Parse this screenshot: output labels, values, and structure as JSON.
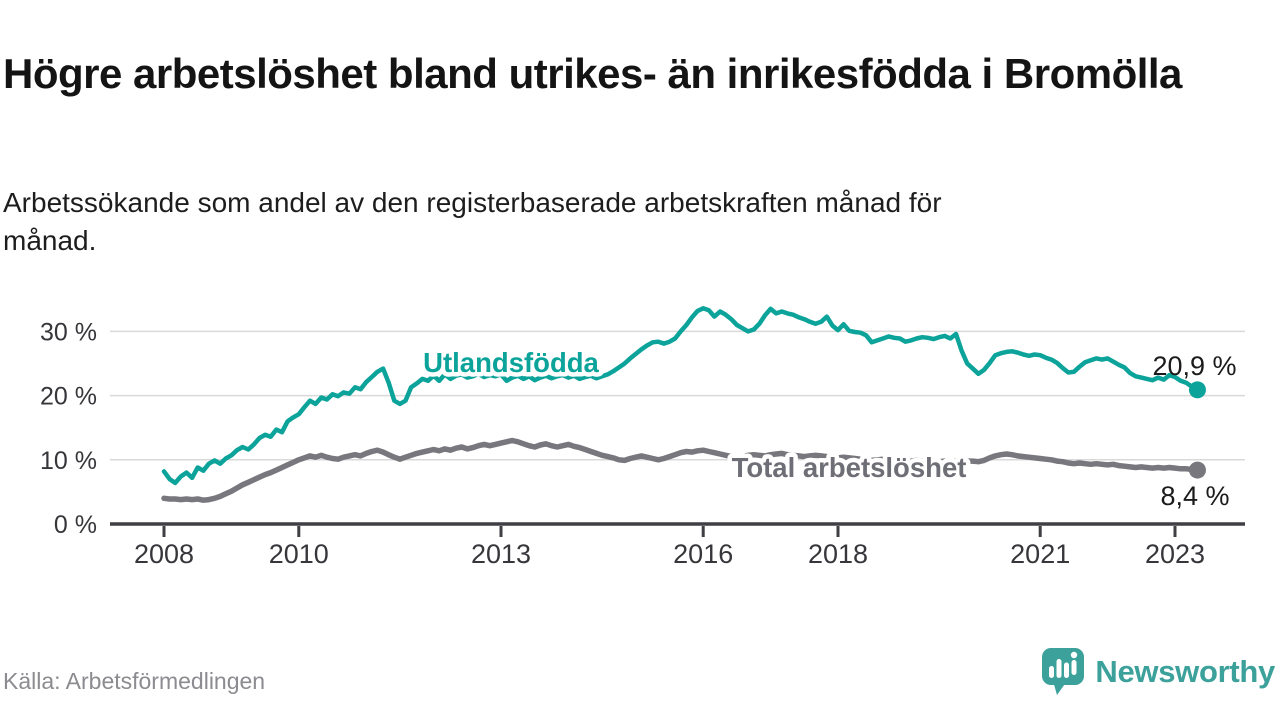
{
  "header": {
    "title": "Högre arbetslöshet bland utrikes- än inrikesfödda i Bromölla",
    "subtitle": "Arbetssökande som andel av den registerbaserade arbetskraften månad för månad."
  },
  "footer": {
    "source": "Källa: Arbetsförmedlingen",
    "brand": "Newsworthy"
  },
  "colors": {
    "teal_series": "#0ca39a",
    "gray_series": "#77777d",
    "gray_label": "#6e6e76",
    "annotation_text": "#1b1b1b",
    "axis_text": "#36363b",
    "axis_line": "#3f3f44",
    "gridline": "#d9d9d9",
    "logo_teal": "#3ba19a",
    "source_text": "#8b8b90"
  },
  "chart_data": {
    "type": "line",
    "title": "",
    "xlabel": "",
    "ylabel": "",
    "x_unit": "month",
    "x_start": "2008-01",
    "x_end": "2023-05",
    "n_points": 185,
    "grid": "horizontal",
    "legend_position": "inline-labels",
    "ylim": [
      0,
      36
    ],
    "y_tick_values": [
      0,
      10,
      20,
      30
    ],
    "y_tick_labels": [
      "0 %",
      "10 %",
      "20 %",
      "30 %"
    ],
    "x_tick_years": [
      2008,
      2010,
      2013,
      2016,
      2018,
      2021,
      2023
    ],
    "x_tick_labels": [
      "2008",
      "2010",
      "2013",
      "2016",
      "2018",
      "2021",
      "2023"
    ],
    "series": [
      {
        "name": "Total arbetslöshet",
        "color": "#77777d",
        "end_label": "8,4 %",
        "end_value": 8.4,
        "values": [
          4.0,
          3.9,
          3.9,
          3.8,
          3.9,
          3.8,
          3.9,
          3.7,
          3.8,
          4.0,
          4.3,
          4.7,
          5.1,
          5.6,
          6.1,
          6.5,
          6.9,
          7.3,
          7.7,
          8.0,
          8.4,
          8.8,
          9.2,
          9.6,
          10.0,
          10.3,
          10.6,
          10.4,
          10.7,
          10.4,
          10.2,
          10.1,
          10.4,
          10.6,
          10.8,
          10.6,
          11.0,
          11.3,
          11.5,
          11.2,
          10.8,
          10.4,
          10.1,
          10.4,
          10.7,
          11.0,
          11.2,
          11.4,
          11.6,
          11.4,
          11.7,
          11.5,
          11.8,
          12.0,
          11.7,
          11.9,
          12.2,
          12.4,
          12.2,
          12.4,
          12.6,
          12.8,
          13.0,
          12.8,
          12.5,
          12.2,
          12.0,
          12.3,
          12.5,
          12.2,
          12.0,
          12.2,
          12.4,
          12.1,
          11.9,
          11.6,
          11.3,
          11.0,
          10.7,
          10.5,
          10.3,
          10.0,
          9.9,
          10.2,
          10.4,
          10.6,
          10.4,
          10.2,
          10.0,
          10.2,
          10.5,
          10.8,
          11.1,
          11.3,
          11.2,
          11.4,
          11.5,
          11.3,
          11.1,
          10.9,
          10.7,
          10.5,
          10.4,
          10.5,
          10.7,
          10.8,
          10.7,
          10.6,
          10.8,
          10.9,
          11.0,
          10.8,
          10.7,
          10.6,
          10.5,
          10.6,
          10.7,
          10.6,
          10.5,
          10.4,
          10.3,
          10.4,
          10.3,
          10.2,
          10.1,
          10.0,
          9.9,
          10.0,
          10.1,
          10.0,
          9.9,
          9.8,
          9.7,
          9.8,
          9.9,
          9.8,
          9.7,
          9.6,
          9.7,
          9.8,
          9.7,
          9.8,
          9.9,
          9.8,
          9.8,
          9.7,
          9.9,
          10.3,
          10.6,
          10.8,
          10.9,
          10.8,
          10.6,
          10.5,
          10.4,
          10.3,
          10.2,
          10.1,
          10.0,
          9.8,
          9.7,
          9.5,
          9.4,
          9.5,
          9.4,
          9.3,
          9.4,
          9.3,
          9.2,
          9.3,
          9.1,
          9.0,
          8.9,
          8.8,
          8.9,
          8.8,
          8.7,
          8.8,
          8.7,
          8.8,
          8.7,
          8.6,
          8.6,
          8.5,
          8.4
        ]
      },
      {
        "name": "Utlandsfödda",
        "color": "#0ca39a",
        "end_label": "20,9 %",
        "end_value": 20.9,
        "values": [
          8.2,
          7.0,
          6.4,
          7.4,
          8.0,
          7.2,
          8.8,
          8.3,
          9.4,
          9.9,
          9.4,
          10.2,
          10.7,
          11.5,
          12.0,
          11.6,
          12.4,
          13.4,
          13.9,
          13.6,
          14.7,
          14.3,
          16.0,
          16.6,
          17.1,
          18.2,
          19.2,
          18.7,
          19.7,
          19.4,
          20.2,
          19.9,
          20.5,
          20.3,
          21.3,
          21.0,
          22.1,
          22.9,
          23.7,
          24.2,
          22.0,
          19.2,
          18.7,
          19.2,
          21.3,
          21.9,
          22.6,
          22.3,
          23.1,
          22.3,
          23.3,
          22.6,
          23.1,
          23.3,
          22.8,
          23.0,
          23.4,
          22.9,
          23.2,
          23.0,
          23.3,
          22.3,
          22.8,
          23.1,
          22.6,
          23.0,
          22.4,
          22.8,
          23.1,
          22.7,
          23.0,
          23.2,
          22.8,
          23.1,
          22.6,
          22.9,
          23.1,
          22.7,
          23.0,
          23.3,
          23.8,
          24.4,
          25.0,
          25.8,
          26.5,
          27.2,
          27.8,
          28.3,
          28.4,
          28.1,
          28.4,
          28.9,
          30.0,
          31.0,
          32.2,
          33.2,
          33.6,
          33.3,
          32.3,
          33.1,
          32.6,
          31.9,
          31.0,
          30.5,
          30.0,
          30.3,
          31.2,
          32.5,
          33.5,
          32.8,
          33.1,
          32.8,
          32.6,
          32.2,
          31.9,
          31.5,
          31.2,
          31.5,
          32.3,
          30.9,
          30.2,
          31.1,
          30.1,
          29.9,
          29.8,
          29.4,
          28.3,
          28.6,
          28.9,
          29.2,
          29.0,
          28.9,
          28.4,
          28.6,
          28.9,
          29.1,
          29.0,
          28.8,
          29.1,
          29.3,
          28.9,
          29.6,
          27.0,
          25.0,
          24.2,
          23.4,
          24.0,
          25.1,
          26.3,
          26.6,
          26.8,
          26.9,
          26.7,
          26.4,
          26.2,
          26.4,
          26.3,
          25.9,
          25.6,
          25.1,
          24.3,
          23.6,
          23.7,
          24.5,
          25.2,
          25.5,
          25.8,
          25.6,
          25.8,
          25.3,
          24.8,
          24.4,
          23.5,
          23.0,
          22.8,
          22.6,
          22.4,
          22.8,
          22.5,
          23.2,
          22.9,
          22.3,
          22.0,
          21.4,
          20.9
        ]
      }
    ]
  }
}
